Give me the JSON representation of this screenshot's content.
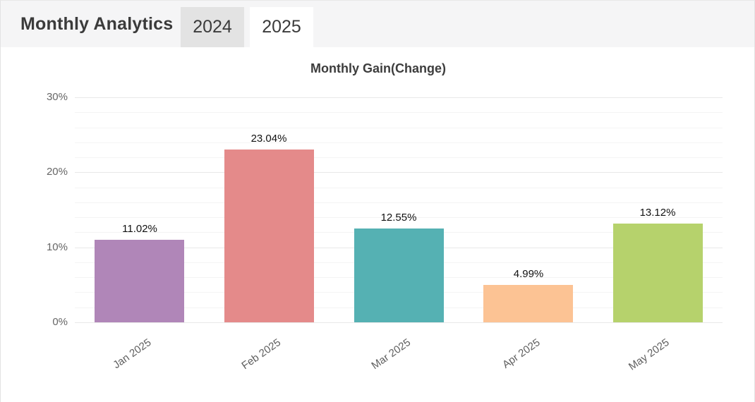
{
  "header": {
    "title": "Monthly Analytics",
    "tabs": [
      {
        "label": "2024",
        "active": false
      },
      {
        "label": "2025",
        "active": true
      }
    ]
  },
  "chart_data": {
    "type": "bar",
    "title": "Monthly Gain(Change)",
    "categories": [
      "Jan 2025",
      "Feb 2025",
      "Mar 2025",
      "Apr 2025",
      "May 2025"
    ],
    "values": [
      11.02,
      23.04,
      12.55,
      4.99,
      13.12
    ],
    "value_labels": [
      "11.02%",
      "23.04%",
      "12.55%",
      "4.99%",
      "13.12%"
    ],
    "bar_colors": [
      "#b086b8",
      "#e48a8a",
      "#55b1b3",
      "#fcc394",
      "#b6d26c"
    ],
    "xlabel": "",
    "ylabel": "",
    "ylim": [
      0,
      30
    ],
    "yticks": [
      0,
      10,
      20,
      30
    ],
    "ytick_labels": [
      "0%",
      "10%",
      "20%",
      "30%"
    ],
    "minor_grid_step": 2,
    "grid": true,
    "legend_position": "none"
  },
  "colors": {
    "header_bg": "#f5f5f6",
    "tab_inactive_bg": "#e3e3e3",
    "tab_active_bg": "#ffffff",
    "title_text": "#3b3b3b",
    "axis_tick_text": "#666666",
    "gridline_major": "#e8e8e8",
    "gridline_minor": "#f4f4f4",
    "value_label_text": "#111111"
  }
}
